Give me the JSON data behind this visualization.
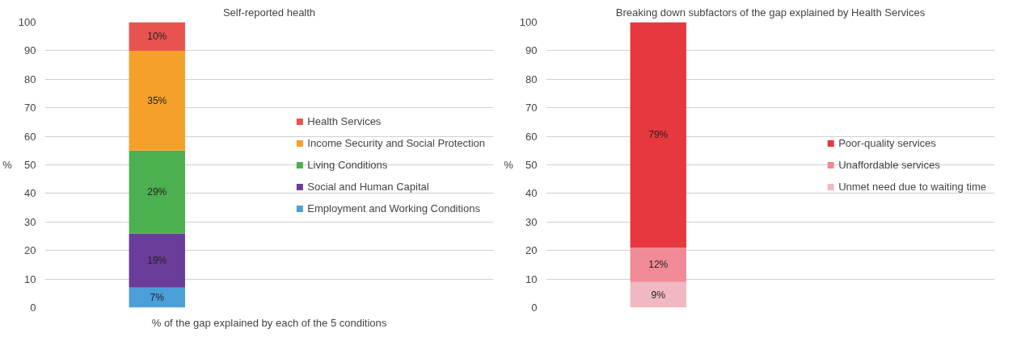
{
  "chart_data": [
    {
      "type": "bar",
      "stacked": true,
      "title": "Self-reported health",
      "xlabel": "% of the gap explained by each of the 5 conditions",
      "ylabel": "%",
      "categories": [
        null
      ],
      "series": [
        {
          "name": "Employment and Working Conditions",
          "color": "#4a9fd8",
          "values": [
            7
          ],
          "value_labels": [
            "7%"
          ]
        },
        {
          "name": "Social and Human Capital",
          "color": "#6a3d9a",
          "values": [
            19
          ],
          "value_labels": [
            "19%"
          ]
        },
        {
          "name": "Living Conditions",
          "color": "#4caf50",
          "values": [
            29
          ],
          "value_labels": [
            "29%"
          ]
        },
        {
          "name": "Income Security and Social Protection",
          "color": "#f5a02a",
          "values": [
            35
          ],
          "value_labels": [
            "35%"
          ]
        },
        {
          "name": "Health Services",
          "color": "#e8534f",
          "values": [
            10
          ],
          "value_labels": [
            "10%"
          ]
        }
      ],
      "ylim": [
        0,
        100
      ],
      "yticks": [
        0,
        10,
        20,
        30,
        40,
        50,
        60,
        70,
        80,
        90,
        100
      ],
      "grid": "y",
      "legend": "right"
    },
    {
      "type": "bar",
      "stacked": true,
      "title": "Breaking down subfactors of the gap explained by Health Services",
      "ylabel": "%",
      "categories": [
        null
      ],
      "series": [
        {
          "name": "Unmet need due to waiting time",
          "color": "#f0b8c0",
          "values": [
            9
          ],
          "value_labels": [
            "9%"
          ]
        },
        {
          "name": "Unaffordable services",
          "color": "#ef8a96",
          "values": [
            12
          ],
          "value_labels": [
            "12%"
          ]
        },
        {
          "name": "Poor-quality services",
          "color": "#e8383f",
          "values": [
            79
          ],
          "value_labels": [
            "79%"
          ]
        }
      ],
      "ylim": [
        0,
        100
      ],
      "yticks": [
        0,
        10,
        20,
        30,
        40,
        50,
        60,
        70,
        80,
        90,
        100
      ],
      "grid": "y",
      "legend": "right"
    }
  ]
}
